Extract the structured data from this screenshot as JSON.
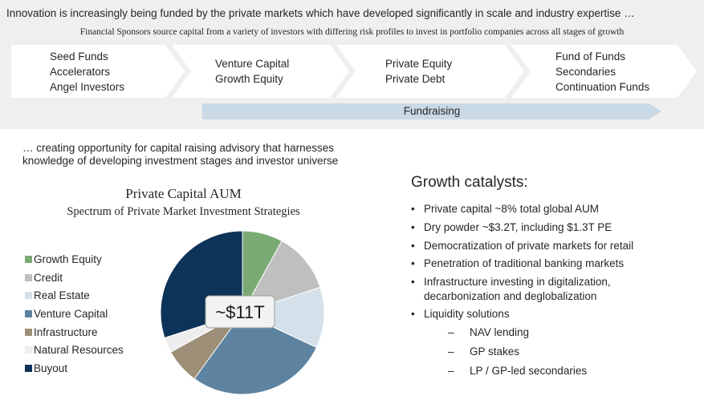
{
  "header": {
    "headline": "Innovation is increasingly being funded by the private markets which have developed significantly in scale and industry expertise …",
    "subhead": "Financial Sponsors source capital from a variety of investors with differing risk profiles to invest in portfolio companies across all stages of growth"
  },
  "stages": [
    {
      "lines": [
        "Seed Funds",
        "Accelerators",
        "Angel Investors"
      ]
    },
    {
      "lines": [
        "Venture Capital",
        "Growth Equity"
      ]
    },
    {
      "lines": [
        "Private Equity",
        "Private Debt"
      ]
    },
    {
      "lines": [
        "Fund of Funds",
        "Secondaries",
        "Continuation Funds"
      ]
    }
  ],
  "fundraising_label": "Fundraising",
  "intro": {
    "line1": "… creating opportunity for capital raising advisory that harnesses",
    "line2": "knowledge of developing investment stages and investor universe"
  },
  "chart_data": {
    "type": "pie",
    "title": "Private Capital AUM",
    "subtitle": "Spectrum of Private Market Investment Strategies",
    "center_label": "~$11T",
    "legend_position": "left",
    "series": [
      {
        "name": "Growth Equity",
        "value": 8,
        "color": "#7aab74"
      },
      {
        "name": "Credit",
        "value": 12,
        "color": "#bfbfbf"
      },
      {
        "name": "Real Estate",
        "value": 12,
        "color": "#d5e1ea"
      },
      {
        "name": "Venture Capital",
        "value": 28,
        "color": "#5d83a0"
      },
      {
        "name": "Infrastructure",
        "value": 7,
        "color": "#9d8e77"
      },
      {
        "name": "Natural Resources",
        "value": 3,
        "color": "#ededed"
      },
      {
        "name": "Buyout",
        "value": 30,
        "color": "#0e3358"
      }
    ]
  },
  "catalysts": {
    "title": "Growth catalysts:",
    "bullets": [
      "Private capital ~8% total global AUM",
      "Dry powder ~$3.2T, including $1.3T PE",
      "Democratization of private markets for retail",
      "Penetration of traditional banking markets",
      "Infrastructure investing in digitalization,",
      "decarbonization and deglobalization",
      "Liquidity solutions"
    ],
    "sub_bullets": [
      "NAV lending",
      "GP stakes",
      "LP / GP-led secondaries"
    ],
    "bullet_glyph": "•",
    "dash_glyph": "–"
  },
  "colors": {
    "band": "#efefef",
    "chevron_fill": "#ffffff",
    "fundraising_arrow": "#cad9e6"
  }
}
